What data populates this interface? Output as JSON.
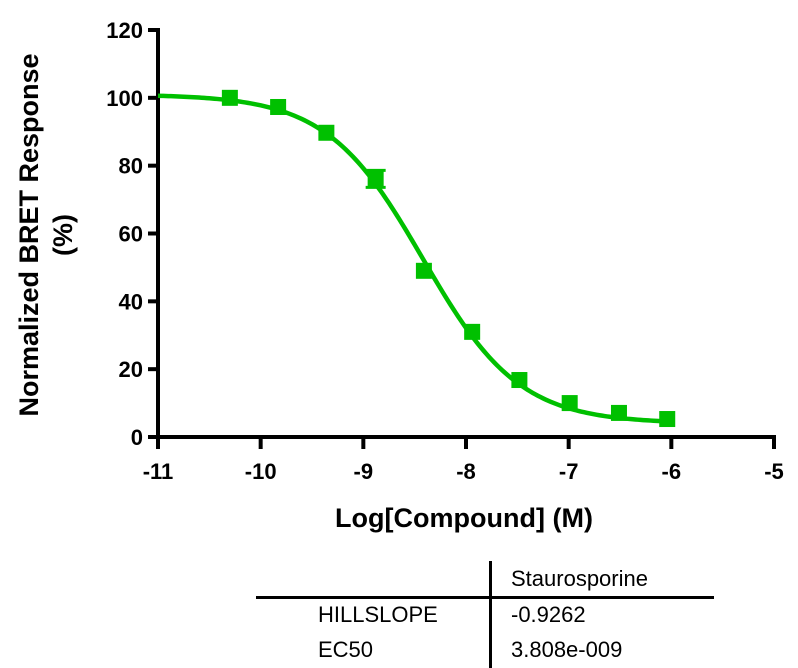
{
  "chart_data": {
    "type": "line",
    "title": "",
    "xlabel": "Log[Compound] (M)",
    "ylabel_line1": "Normalized BRET Response",
    "ylabel_line2": "(%)",
    "xlim": [
      -11,
      -5
    ],
    "ylim": [
      0,
      120
    ],
    "x_ticks": [
      -11,
      -10,
      -9,
      -8,
      -7,
      -6,
      -5
    ],
    "x_tick_labels": [
      "-11",
      "-10",
      "-9",
      "-8",
      "-7",
      "-6",
      "-5"
    ],
    "y_ticks": [
      0,
      20,
      40,
      60,
      80,
      100,
      120
    ],
    "y_tick_labels": [
      "0",
      "20",
      "40",
      "60",
      "80",
      "100",
      "120"
    ],
    "grid": false,
    "legend": null,
    "series": [
      {
        "name": "Staurosporine",
        "color": "#00c000",
        "marker": "square",
        "points": [
          {
            "x": -10.3,
            "y": 100.0
          },
          {
            "x": -9.83,
            "y": 97.3
          },
          {
            "x": -9.36,
            "y": 89.7
          },
          {
            "x": -8.88,
            "y": 76.1,
            "error": 2.5
          },
          {
            "x": -8.41,
            "y": 49.0
          },
          {
            "x": -7.94,
            "y": 31.0
          },
          {
            "x": -7.48,
            "y": 16.8
          },
          {
            "x": -6.99,
            "y": 10.0
          },
          {
            "x": -6.51,
            "y": 7.1
          },
          {
            "x": -6.04,
            "y": 5.3
          }
        ],
        "fit": {
          "model": "sigmoidal dose-response (variable slope)",
          "top": 101.0,
          "bottom": 4.0,
          "logEC50": -8.419,
          "hillslope": -0.9262,
          "x_range": [
            -11,
            -6
          ]
        }
      }
    ],
    "results_table": {
      "columns": [
        "",
        "Staurosporine"
      ],
      "rows": [
        {
          "label": "HILLSLOPE",
          "value": "-0.9262"
        },
        {
          "label": "EC50",
          "value": "3.808e-009"
        }
      ]
    }
  },
  "results_table": {
    "header": "Staurosporine",
    "row1_label": "HILLSLOPE",
    "row1_value": "-0.9262",
    "row2_label": "EC50",
    "row2_value": "3.808e-009"
  }
}
